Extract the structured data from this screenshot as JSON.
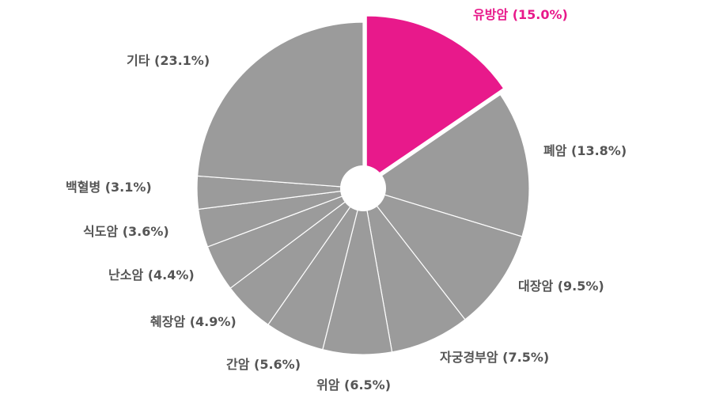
{
  "chart_data": {
    "type": "pie",
    "title": "",
    "categories": [
      "유방암",
      "폐암",
      "대장암",
      "자궁경부암",
      "위암",
      "간암",
      "췌장암",
      "난소암",
      "식도암",
      "백혈병",
      "기타"
    ],
    "values": [
      15.0,
      13.8,
      9.5,
      7.5,
      6.5,
      5.6,
      4.9,
      4.4,
      3.6,
      3.1,
      23.1
    ],
    "labels": [
      "유방암 (15.0%)",
      "폐암 (13.8%)",
      "대장암 (9.5%)",
      "자궁경부암 (7.5%)",
      "위암 (6.5%)",
      "간암 (5.6%)",
      "췌장암 (4.9%)",
      "난소암 (4.4%)",
      "식도암 (3.6%)",
      "백혈병 (3.1%)",
      "기타 (23.1%)"
    ],
    "exploded": "유방암",
    "donut_hole": true,
    "colors": {
      "highlight": "#e8198b",
      "default": "#9b9b9b",
      "highlight_label": "#e8198b",
      "default_label": "#555555"
    }
  }
}
